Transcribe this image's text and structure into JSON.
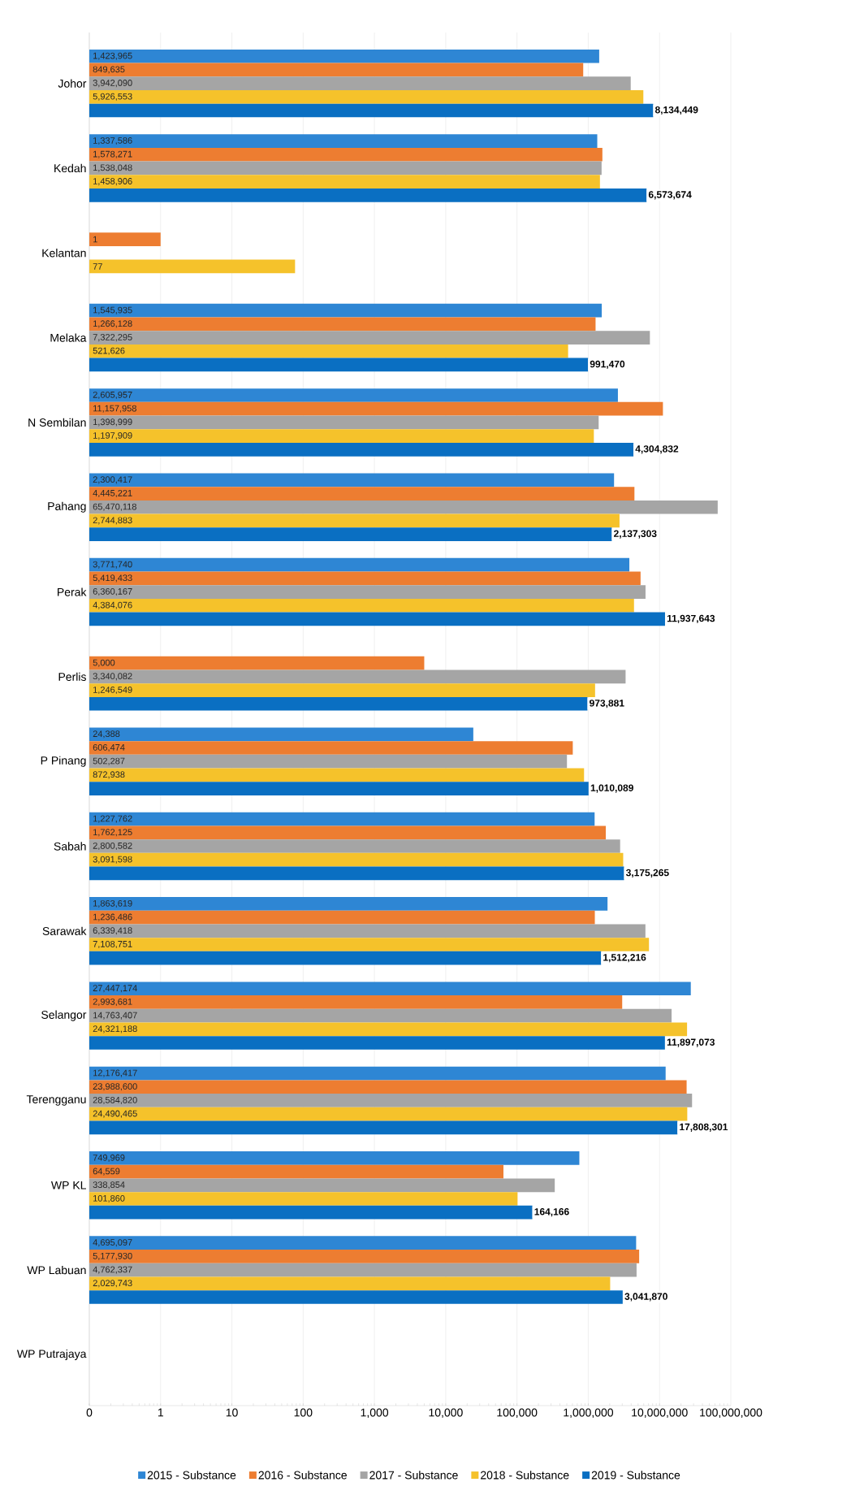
{
  "chart_data": {
    "type": "bar",
    "orientation": "horizontal",
    "log": "x",
    "grid": "x",
    "legend": "bottom",
    "data_labels": true,
    "categories": [
      "Johor",
      "Kedah",
      "Kelantan",
      "Melaka",
      "N Sembilan",
      "Pahang",
      "Perak",
      "Perlis",
      "P Pinang",
      "Sabah",
      "Sarawak",
      "Selangor",
      "Terengganu",
      "WP KL",
      "WP Labuan",
      "WP Putrajaya"
    ],
    "xlim": [
      0.1,
      100000000
    ],
    "xticks": [
      {
        "value": 0.1,
        "label": "0"
      },
      {
        "value": 1,
        "label": "1"
      },
      {
        "value": 10,
        "label": "10"
      },
      {
        "value": 100,
        "label": "100"
      },
      {
        "value": 1000,
        "label": "1,000"
      },
      {
        "value": 10000,
        "label": "10,000"
      },
      {
        "value": 100000,
        "label": "100,000"
      },
      {
        "value": 1000000,
        "label": "1,000,000"
      },
      {
        "value": 10000000,
        "label": "10,000,000"
      },
      {
        "value": 100000000,
        "label": "100,000,000"
      }
    ],
    "series": [
      {
        "name": "2015 - Substance",
        "color": "#2e86d4",
        "values": [
          1423965,
          1337586,
          null,
          1545935,
          2605957,
          2300417,
          3771740,
          null,
          24388,
          1227762,
          1863619,
          27447174,
          12176417,
          749969,
          4695097,
          null
        ],
        "value_labels": [
          "1,423,965",
          "1,337,586",
          null,
          "1,545,935",
          "2,605,957",
          "2,300,417",
          "3,771,740",
          null,
          "24,388",
          "1,227,762",
          "1,863,619",
          "27,447,174",
          "12,176,417",
          "749,969",
          "4,695,097",
          null
        ]
      },
      {
        "name": "2016 - Substance",
        "color": "#ed7d31",
        "values": [
          849635,
          1578271,
          1,
          1266128,
          11157958,
          4445221,
          5419433,
          5000,
          606474,
          1762125,
          1236486,
          2993681,
          23988600,
          64559,
          5177930,
          null
        ],
        "value_labels": [
          "849,635",
          "1,578,271",
          "1",
          "1,266,128",
          "11,157,958",
          "4,445,221",
          "5,419,433",
          "5,000",
          "606,474",
          "1,762,125",
          "1,236,486",
          "2,993,681",
          "23,988,600",
          "64,559",
          "5,177,930",
          null
        ]
      },
      {
        "name": "2017 - Substance",
        "color": "#a5a5a5",
        "values": [
          3942090,
          1538048,
          null,
          7322295,
          1398999,
          65470118,
          6360167,
          3340082,
          502287,
          2800582,
          6339418,
          14763407,
          28584820,
          338854,
          4762337,
          null
        ],
        "value_labels": [
          "3,942,090",
          "1,538,048",
          null,
          "7,322,295",
          "1,398,999",
          "65,470,118",
          "6,360,167",
          "3,340,082",
          "502,287",
          "2,800,582",
          "6,339,418",
          "14,763,407",
          "28,584,820",
          "338,854",
          "4,762,337",
          null
        ]
      },
      {
        "name": "2018 - Substance",
        "color": "#f5c22b",
        "values": [
          5926553,
          1458906,
          77,
          521626,
          1197909,
          2744883,
          4384076,
          1246549,
          872938,
          3091598,
          7108751,
          24321188,
          24490465,
          101860,
          2029743,
          null
        ],
        "value_labels": [
          "5,926,553",
          "1,458,906",
          "77",
          "521,626",
          "1,197,909",
          "2,744,883",
          "4,384,076",
          "1,246,549",
          "872,938",
          "3,091,598",
          "7,108,751",
          "24,321,188",
          "24,490,465",
          "101,860",
          "2,029,743",
          null
        ]
      },
      {
        "name": "2019 - Substance",
        "color": "#0a6fc2",
        "values": [
          8134449,
          6573674,
          null,
          991470,
          4304832,
          2137303,
          11937643,
          973881,
          1010089,
          3175265,
          1512216,
          11897073,
          17808301,
          164166,
          3041870,
          null
        ],
        "value_labels": [
          "8,134,449",
          "6,573,674",
          null,
          "991,470",
          "4,304,832",
          "2,137,303",
          "11,937,643",
          "973,881",
          "1,010,089",
          "3,175,265",
          "1,512,216",
          "11,897,073",
          "17,808,301",
          "164,166",
          "3,041,870",
          null
        ]
      }
    ]
  }
}
